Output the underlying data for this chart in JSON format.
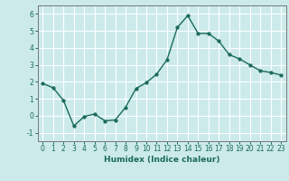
{
  "xlabel": "Humidex (Indice chaleur)",
  "x": [
    0,
    1,
    2,
    3,
    4,
    5,
    6,
    7,
    8,
    9,
    10,
    11,
    12,
    13,
    14,
    15,
    16,
    17,
    18,
    19,
    20,
    21,
    22,
    23
  ],
  "y": [
    1.9,
    1.65,
    0.9,
    -0.6,
    -0.05,
    0.1,
    -0.3,
    -0.25,
    0.5,
    1.6,
    1.95,
    2.45,
    3.3,
    5.2,
    5.9,
    4.85,
    4.85,
    4.4,
    3.6,
    3.35,
    3.0,
    2.65,
    2.55,
    2.4
  ],
  "line_color": "#1a6b5a",
  "marker_size": 2.5,
  "bg_color": "#cceaea",
  "grid_color": "#ffffff",
  "ylim": [
    -1.5,
    6.5
  ],
  "xlim": [
    -0.5,
    23.5
  ],
  "yticks": [
    -1,
    0,
    1,
    2,
    3,
    4,
    5,
    6
  ],
  "xticks": [
    0,
    1,
    2,
    3,
    4,
    5,
    6,
    7,
    8,
    9,
    10,
    11,
    12,
    13,
    14,
    15,
    16,
    17,
    18,
    19,
    20,
    21,
    22,
    23
  ],
  "tick_fontsize": 5.5,
  "xlabel_fontsize": 6.5,
  "linewidth": 1.0
}
